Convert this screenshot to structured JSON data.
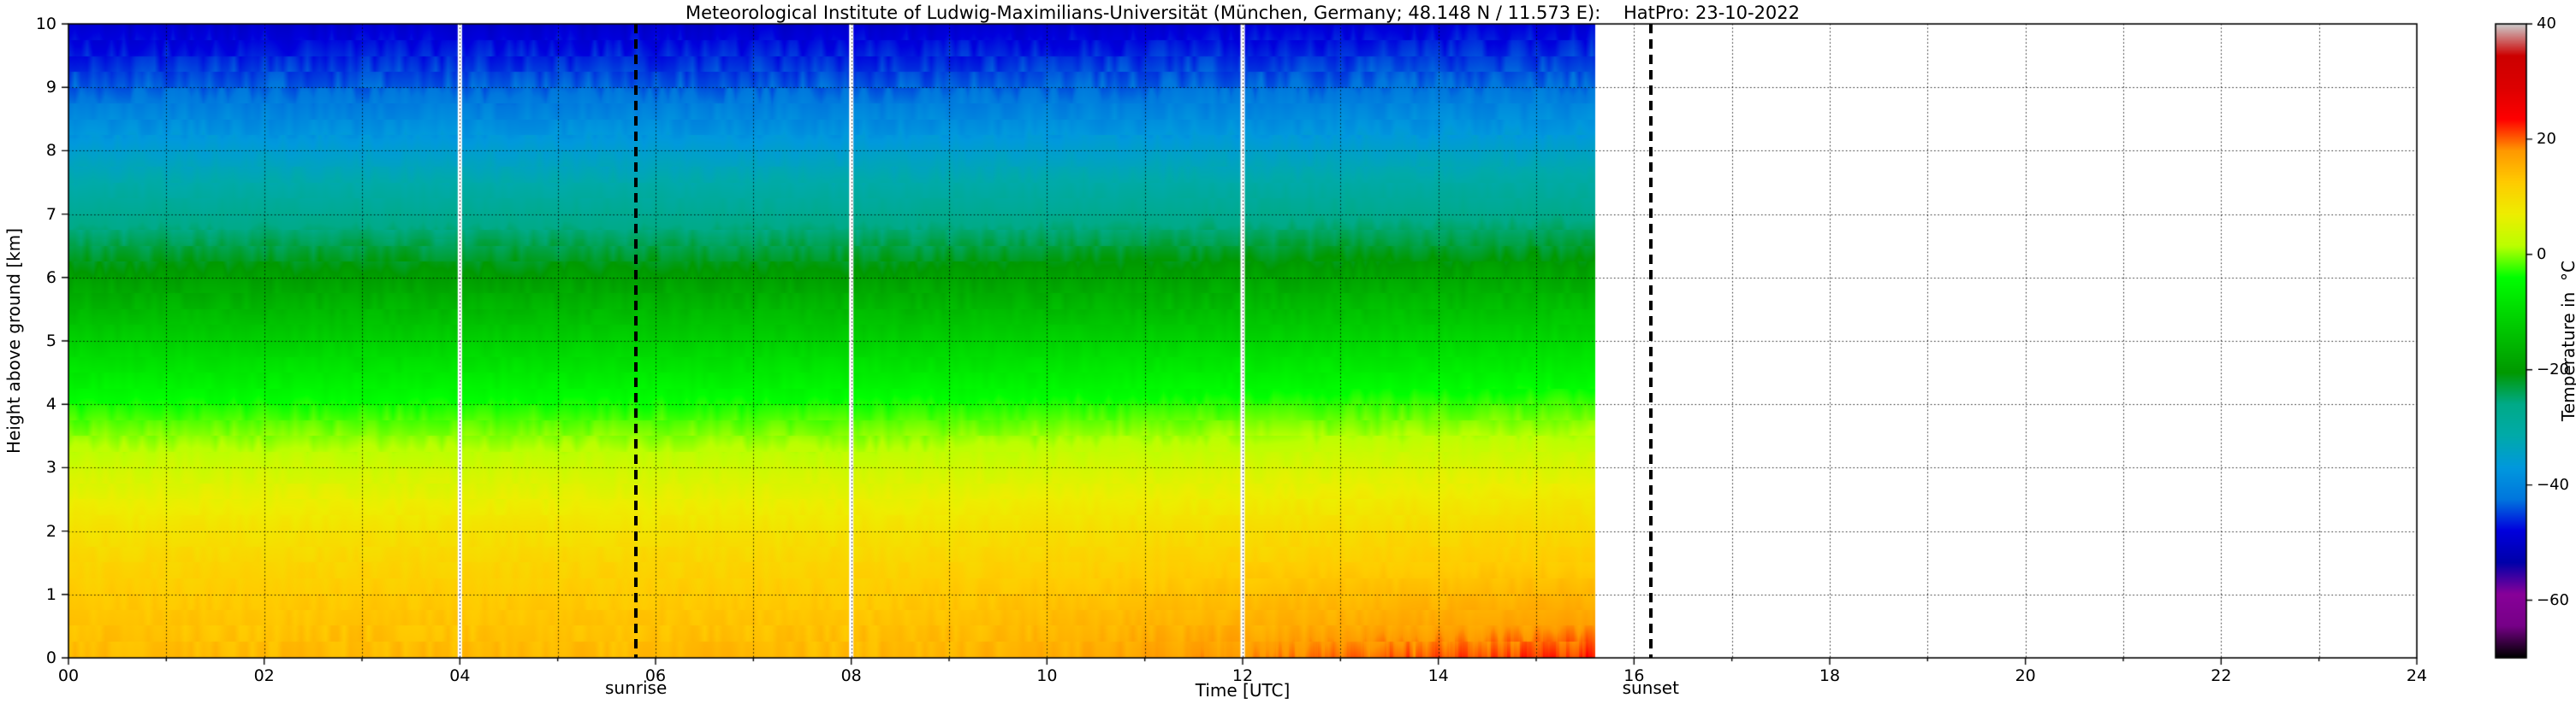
{
  "title": "Meteorological Institute of Ludwig-Maximilians-Universität (München, Germany; 48.148 N / 11.573 E):    HatPro: 23-10-2022",
  "axes": {
    "x_label": "Time [UTC]",
    "y_label": "Height above ground [km]",
    "x_tick_hours": [
      0,
      2,
      4,
      6,
      8,
      10,
      12,
      14,
      16,
      18,
      20,
      22,
      24
    ],
    "x_tick_labels": [
      "00",
      "02",
      "04",
      "06",
      "08",
      "10",
      "12",
      "14",
      "16",
      "18",
      "20",
      "22",
      "24"
    ],
    "y_tick_km": [
      0,
      1,
      2,
      3,
      4,
      5,
      6,
      7,
      8,
      9,
      10
    ],
    "y_tick_labels": [
      "0",
      "1",
      "2",
      "3",
      "4",
      "5",
      "6",
      "7",
      "8",
      "9",
      "10"
    ]
  },
  "annotations": {
    "sunrise": {
      "label": "sunrise",
      "hour_utc": 5.8
    },
    "sunset": {
      "label": "sunset",
      "hour_utc": 16.17
    },
    "line_style": "black-dashed-vertical"
  },
  "colorbar": {
    "label": "Temperature in  °C",
    "unit": "°C",
    "range_c": [
      -70,
      40
    ],
    "tick_values_c": [
      40,
      20,
      0,
      -20,
      -40,
      -60
    ],
    "tick_labels": [
      "40",
      "20",
      "0",
      "−20",
      "−40",
      "−60"
    ],
    "colormap_name": "nipy-spectral-like",
    "colormap_stops": [
      [
        0.0,
        "#000000"
      ],
      [
        0.05,
        "#770088"
      ],
      [
        0.1,
        "#880099"
      ],
      [
        0.15,
        "#0000AA"
      ],
      [
        0.2,
        "#0000DD"
      ],
      [
        0.25,
        "#0077DD"
      ],
      [
        0.3,
        "#0099DD"
      ],
      [
        0.35,
        "#00AAAA"
      ],
      [
        0.4,
        "#00AA88"
      ],
      [
        0.45,
        "#009900"
      ],
      [
        0.5,
        "#00BB00"
      ],
      [
        0.55,
        "#00DD00"
      ],
      [
        0.6,
        "#00FF00"
      ],
      [
        0.65,
        "#BBFF00"
      ],
      [
        0.7,
        "#EEEE00"
      ],
      [
        0.75,
        "#FFCC00"
      ],
      [
        0.8,
        "#FF9900"
      ],
      [
        0.85,
        "#FF0000"
      ],
      [
        0.9,
        "#DD0000"
      ],
      [
        0.95,
        "#CC0000"
      ],
      [
        1.0,
        "#CCCCCC"
      ]
    ]
  },
  "chart_data": {
    "type": "heatmap",
    "x_unit": "hour_utc",
    "x_range": [
      0,
      24
    ],
    "y_unit": "km_above_ground",
    "y_range": [
      0,
      10
    ],
    "data_start_hour": 0,
    "data_end_hour": 15.6,
    "no_data_region": "white (15.6 to 24 UTC)",
    "data_gap_hours": [
      4,
      8,
      12
    ],
    "grid": {
      "x_interval_h": 1,
      "y_interval_km": 1,
      "style": "dotted-black"
    },
    "value_range_c_displayed": [
      -52,
      23
    ],
    "temperature_profiles_c": {
      "heights_km": [
        0,
        0.5,
        1,
        1.5,
        2,
        2.5,
        3,
        3.5,
        4,
        4.5,
        5,
        5.5,
        6,
        6.5,
        7,
        7.5,
        8,
        8.5,
        9,
        9.5,
        10
      ],
      "at_00_utc": [
        14.5,
        13.5,
        12.5,
        11,
        9,
        6.5,
        3.5,
        0,
        -3.5,
        -7.5,
        -11.5,
        -15.5,
        -19.5,
        -23.5,
        -27.5,
        -31.5,
        -35.5,
        -39.5,
        -43.5,
        -46.5,
        -49.5
      ],
      "at_15_utc": [
        19.5,
        17.5,
        15,
        12.5,
        10.5,
        8,
        5,
        1.5,
        -2,
        -6,
        -10,
        -14,
        -18,
        -22.5,
        -26.5,
        -30.5,
        -34.5,
        -38.5,
        -42.5,
        -45.5,
        -48.5
      ],
      "warming_start_hour": 8,
      "surface_afternoon_max_c": 22
    }
  }
}
